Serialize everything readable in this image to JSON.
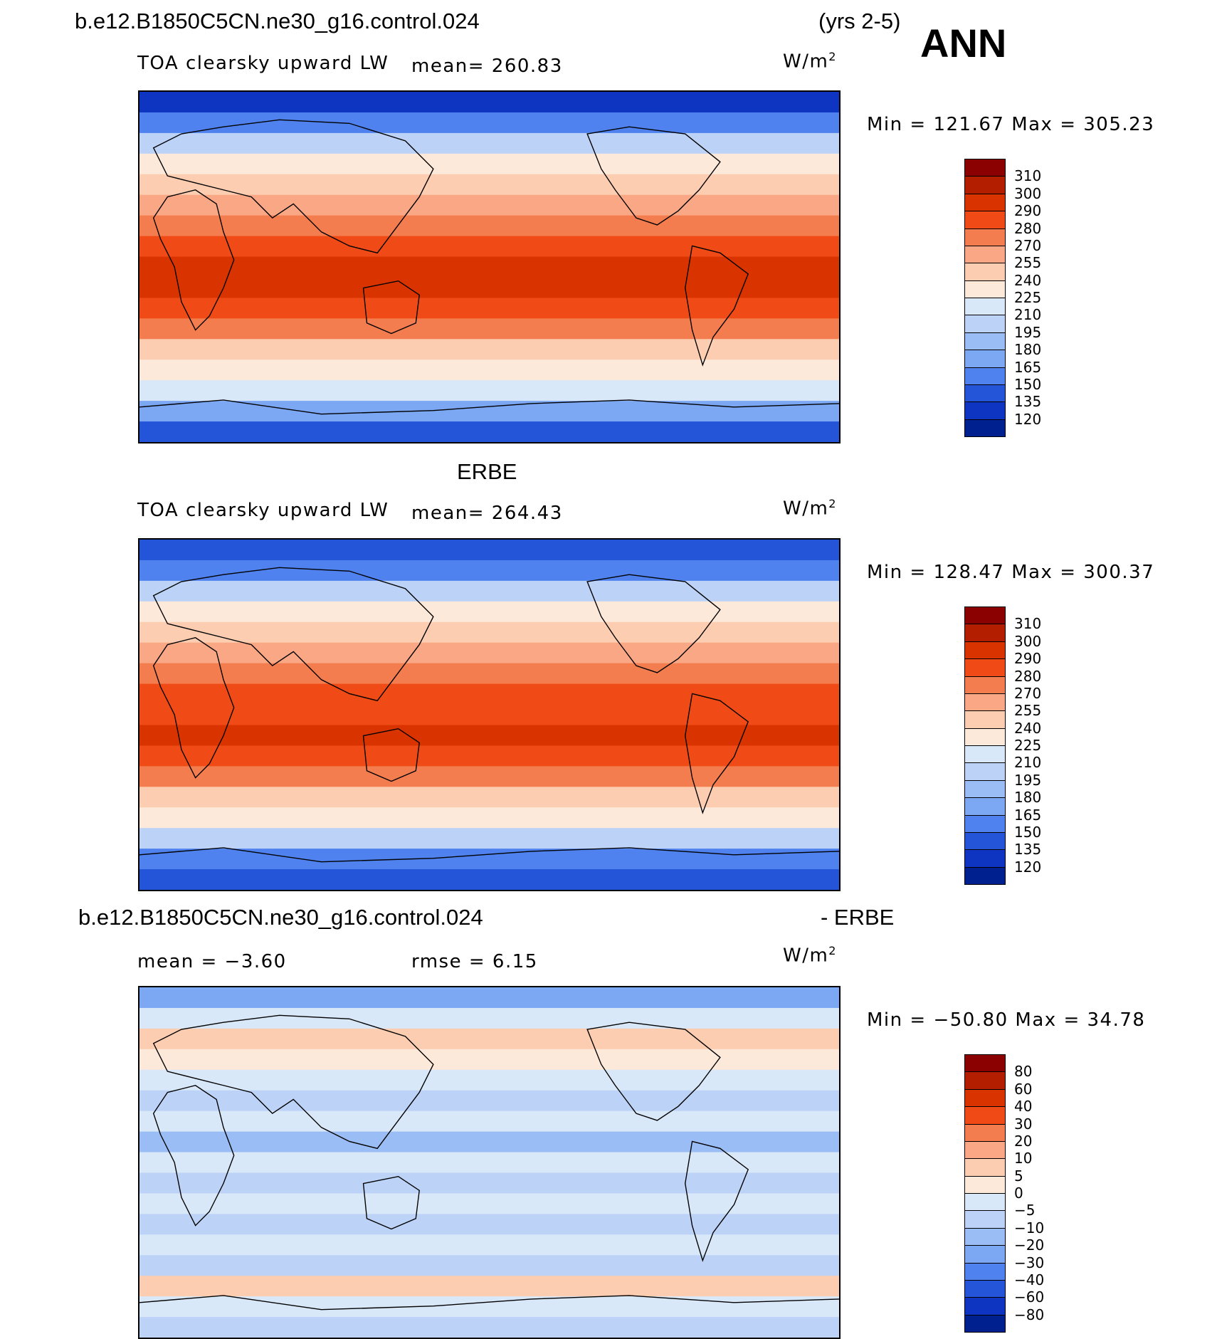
{
  "header": {
    "case_title": "b.e12.B1850C5CN.ne30_g16.control.024",
    "years": "(yrs 2-5)",
    "season": "ANN"
  },
  "panels": [
    {
      "title": "",
      "variable": "TOA clearsky upward LW",
      "stat1": "mean= 260.83",
      "stat2": "",
      "units": "W/m",
      "units_sup": "2",
      "minmax": "Min = 121.67 Max = 305.23"
    },
    {
      "title": "ERBE",
      "variable": "TOA clearsky upward LW",
      "stat1": "mean= 264.43",
      "stat2": "",
      "units": "W/m",
      "units_sup": "2",
      "minmax": "Min = 128.47 Max = 300.37"
    },
    {
      "title": "b.e12.B1850C5CN.ne30_g16.control.024",
      "title_right": "- ERBE",
      "variable": "",
      "stat1": "mean =   −3.60",
      "stat2": "rmse =    6.15",
      "units": "W/m",
      "units_sup": "2",
      "minmax": "Min = −50.80 Max =  34.78"
    }
  ],
  "colorbars": {
    "absolute": {
      "levels": [
        "310",
        "300",
        "290",
        "280",
        "270",
        "255",
        "240",
        "225",
        "210",
        "195",
        "180",
        "165",
        "150",
        "135",
        "120"
      ],
      "colors": [
        "#8b0000",
        "#b31d00",
        "#d93300",
        "#f04b16",
        "#f47d4f",
        "#f9a784",
        "#fccdb0",
        "#fde9d9",
        "#d9e8f8",
        "#bcd3f7",
        "#9bbdf5",
        "#7ba7f3",
        "#4f82ee",
        "#2455d9",
        "#0d35c2",
        "#002090"
      ]
    },
    "difference": {
      "levels": [
        "80",
        "60",
        "40",
        "30",
        "20",
        "10",
        "5",
        "0",
        "−5",
        "−10",
        "−20",
        "−30",
        "−40",
        "−60",
        "−80"
      ],
      "colors": [
        "#8b0000",
        "#b31d00",
        "#d93300",
        "#f04b16",
        "#f47d4f",
        "#f9a784",
        "#fccdb0",
        "#fde9d9",
        "#d9e8f8",
        "#bcd3f7",
        "#9bbdf5",
        "#7ba7f3",
        "#4f82ee",
        "#2455d9",
        "#0d35c2",
        "#002090"
      ]
    }
  },
  "map_fields": {
    "model": [
      "#0d35c2",
      "#4f82ee",
      "#bcd3f7",
      "#fde9d9",
      "#fccdb0",
      "#f9a784",
      "#f47d4f",
      "#f04b16",
      "#d93300",
      "#d93300",
      "#f04b16",
      "#f47d4f",
      "#fccdb0",
      "#fde9d9",
      "#d9e8f8",
      "#7ba7f3",
      "#2455d9"
    ],
    "erbe": [
      "#2455d9",
      "#4f82ee",
      "#bcd3f7",
      "#fde9d9",
      "#fccdb0",
      "#f9a784",
      "#f47d4f",
      "#f04b16",
      "#f04b16",
      "#d93300",
      "#f04b16",
      "#f47d4f",
      "#fccdb0",
      "#fde9d9",
      "#bcd3f7",
      "#4f82ee",
      "#2455d9"
    ],
    "diff": [
      "#7ba7f3",
      "#d9e8f8",
      "#fccdb0",
      "#fde9d9",
      "#d9e8f8",
      "#bcd3f7",
      "#d9e8f8",
      "#9bbdf5",
      "#d9e8f8",
      "#bcd3f7",
      "#d9e8f8",
      "#bcd3f7",
      "#d9e8f8",
      "#bcd3f7",
      "#fccdb0",
      "#d9e8f8",
      "#bcd3f7"
    ]
  }
}
